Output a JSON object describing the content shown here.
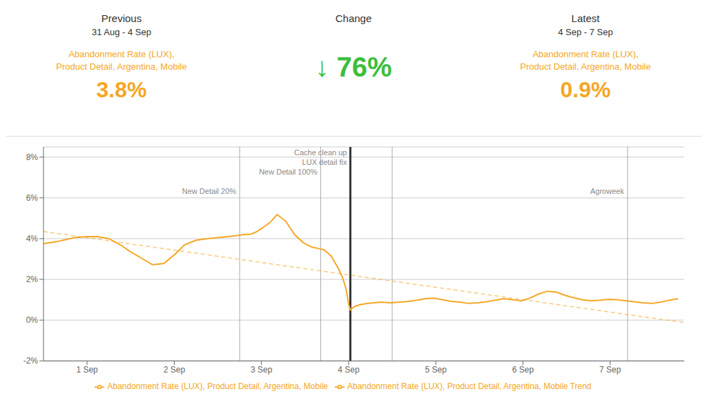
{
  "chart_data": {
    "type": "line",
    "header": {
      "columns": [
        {
          "title": "Previous",
          "period": "31 Aug - 4 Sep",
          "metric": [
            "Abandonment Rate (LUX),",
            "Product Detail, Argentina, Mobile"
          ],
          "value": "3.8%",
          "color": "#F5A623"
        },
        {
          "title": "Change",
          "value": "↓ 76%",
          "color": "#3DBE3D"
        },
        {
          "title": "Latest",
          "period": "4 Sep - 7 Sep",
          "metric": [
            "Abandonment Rate (LUX),",
            "Product Detail, Argentina, Mobile"
          ],
          "value": "0.9%",
          "color": "#F5A623"
        }
      ]
    },
    "series": [
      {
        "name": "Abandonment Rate (LUX), Product Detail, Argentina, Mobile",
        "color": "#F5A623",
        "line_style": "solid",
        "x": [
          0.5,
          0.65,
          0.75,
          0.85,
          1.0,
          1.12,
          1.25,
          1.38,
          1.5,
          1.62,
          1.75,
          1.88,
          2.0,
          2.12,
          2.25,
          2.38,
          2.5,
          2.62,
          2.72,
          2.8,
          2.88,
          2.95,
          3.02,
          3.1,
          3.18,
          3.28,
          3.38,
          3.48,
          3.58,
          3.65,
          3.72,
          3.8,
          3.88,
          3.93,
          3.97,
          4.0,
          4.02,
          4.06,
          4.1,
          4.18,
          4.28,
          4.38,
          4.48,
          4.58,
          4.68,
          4.78,
          4.88,
          4.98,
          5.08,
          5.18,
          5.28,
          5.38,
          5.48,
          5.58,
          5.68,
          5.78,
          5.88,
          5.98,
          6.08,
          6.18,
          6.28,
          6.38,
          6.48,
          6.58,
          6.68,
          6.78,
          6.88,
          6.98,
          7.08,
          7.18,
          7.28,
          7.38,
          7.48,
          7.58,
          7.68,
          7.78
        ],
        "values": [
          3.75,
          3.85,
          3.95,
          4.05,
          4.1,
          4.1,
          4.0,
          3.7,
          3.35,
          3.05,
          2.72,
          2.78,
          3.2,
          3.7,
          3.92,
          4.0,
          4.05,
          4.1,
          4.15,
          4.2,
          4.22,
          4.35,
          4.55,
          4.8,
          5.18,
          4.85,
          4.2,
          3.8,
          3.58,
          3.52,
          3.45,
          3.15,
          2.55,
          2.1,
          1.55,
          0.8,
          0.5,
          0.65,
          0.72,
          0.8,
          0.85,
          0.88,
          0.85,
          0.88,
          0.92,
          0.98,
          1.05,
          1.08,
          1.0,
          0.92,
          0.88,
          0.82,
          0.85,
          0.9,
          0.98,
          1.05,
          1.0,
          0.95,
          1.08,
          1.28,
          1.42,
          1.38,
          1.22,
          1.1,
          1.0,
          0.95,
          0.98,
          1.02,
          1.0,
          0.95,
          0.9,
          0.85,
          0.82,
          0.88,
          0.98,
          1.05
        ]
      },
      {
        "name": "Abandonment Rate (LUX), Product Detail, Argentina, Mobile Trend",
        "color": "#F5A623",
        "line_style": "dashed",
        "x": [
          0.5,
          7.85
        ],
        "values": [
          4.35,
          -0.12
        ]
      }
    ],
    "annotations": [
      {
        "x": 2.75,
        "label": "New Detail 20%",
        "color": "#AAAAAA"
      },
      {
        "x": 3.68,
        "label": "New Detail 100%",
        "color": "#AAAAAA"
      },
      {
        "x": 4.02,
        "label": "Cache clean up\nLUX detail fix",
        "color": "#333333"
      },
      {
        "x": 4.5,
        "color": "#AAAAAA"
      },
      {
        "x": 7.2,
        "label": "Agroweek",
        "color": "#AAAAAA"
      }
    ],
    "xlim": [
      0.5,
      7.85
    ],
    "xticks": [
      {
        "value": 1,
        "label": "1 Sep"
      },
      {
        "value": 2,
        "label": "2 Sep"
      },
      {
        "value": 3,
        "label": "3 Sep"
      },
      {
        "value": 4,
        "label": "4 Sep"
      },
      {
        "value": 5,
        "label": "5 Sep"
      },
      {
        "value": 6,
        "label": "6 Sep"
      },
      {
        "value": 7,
        "label": "7 Sep"
      }
    ],
    "ylim": [
      -2,
      8.5
    ],
    "yticks": [
      {
        "value": -2,
        "label": "-2%"
      },
      {
        "value": 0,
        "label": "0%"
      },
      {
        "value": 2,
        "label": "2%"
      },
      {
        "value": 4,
        "label": "4%"
      },
      {
        "value": 6,
        "label": "6%"
      },
      {
        "value": 8,
        "label": "8%"
      }
    ],
    "grid": "y",
    "legend": "bottom"
  }
}
